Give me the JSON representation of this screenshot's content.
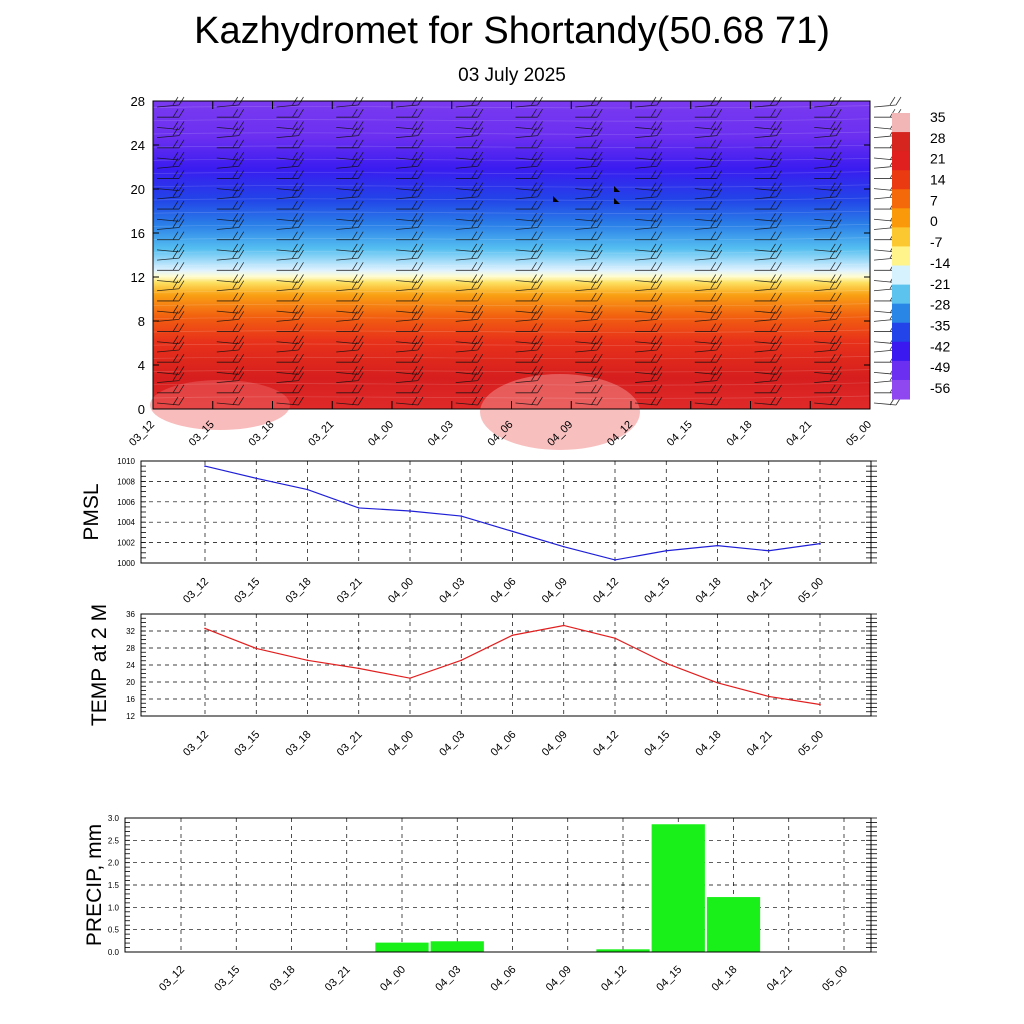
{
  "header": {
    "title": "Kazhydromet for Shortandy(50.68 71)",
    "subtitle": "03 July 2025"
  },
  "chart_data": [
    {
      "type": "heatmap",
      "name": "temperature-profile",
      "title": "",
      "xlabel": "",
      "ylabel": "",
      "x": [
        "03_12",
        "03_15",
        "03_18",
        "03_21",
        "04_00",
        "04_03",
        "04_06",
        "04_09",
        "04_12",
        "04_15",
        "04_18",
        "04_21",
        "05_00"
      ],
      "ylim": [
        0,
        28
      ],
      "yticks": [
        0,
        4,
        8,
        12,
        16,
        20,
        24,
        28
      ],
      "colorbar_labels": [
        "35",
        "28",
        "21",
        "14",
        "7",
        "0",
        "-7",
        "-14",
        "-21",
        "-28",
        "-35",
        "-42",
        "-49",
        "-56"
      ],
      "colorbar_colors": [
        "#f2b6b6",
        "#d6241f",
        "#e01f1f",
        "#ea3a12",
        "#f46a0a",
        "#fa9a0a",
        "#fcc832",
        "#fff48c",
        "#d6f2ff",
        "#5cc3ee",
        "#2a86e6",
        "#2244e8",
        "#3a18f0",
        "#6a2ff0",
        "#8f47f0"
      ],
      "wind_barbs": "shown"
    },
    {
      "type": "line",
      "name": "pmsl",
      "title": "",
      "ylabel": "PMSL",
      "x": [
        "03_12",
        "03_15",
        "03_18",
        "03_21",
        "04_00",
        "04_03",
        "04_06",
        "04_09",
        "04_12",
        "04_15",
        "04_18",
        "04_21",
        "05_00"
      ],
      "values": [
        1009.5,
        1008.3,
        1007.2,
        1005.4,
        1005.1,
        1004.6,
        1003.1,
        1001.6,
        1000.3,
        1001.2,
        1001.7,
        1001.2,
        1001.9
      ],
      "ylim": [
        1000,
        1010
      ],
      "yticks": [
        1000,
        1002,
        1004,
        1006,
        1008,
        1010
      ],
      "color": "#1f1fd6",
      "grid": true
    },
    {
      "type": "line",
      "name": "temp2m",
      "title": "",
      "ylabel": "TEMP at 2 M",
      "x": [
        "03_12",
        "03_15",
        "03_18",
        "03_21",
        "04_00",
        "04_03",
        "04_06",
        "04_09",
        "04_12",
        "04_15",
        "04_18",
        "04_21",
        "05_00"
      ],
      "values": [
        32.6,
        27.9,
        25.1,
        23.2,
        20.9,
        25.1,
        31.0,
        33.3,
        30.3,
        24.4,
        19.8,
        16.6,
        14.7
      ],
      "ylim": [
        12,
        36
      ],
      "yticks": [
        12,
        16,
        20,
        24,
        28,
        32,
        36
      ],
      "color": "#e01f1f",
      "grid": true
    },
    {
      "type": "bar",
      "name": "precip",
      "title": "",
      "ylabel": "PRECIP, mm",
      "categories": [
        "03_12",
        "03_15",
        "03_18",
        "03_21",
        "04_00",
        "04_03",
        "04_06",
        "04_09",
        "04_12",
        "04_15",
        "04_18",
        "04_21",
        "05_00"
      ],
      "values": [
        0,
        0,
        0,
        0,
        0.21,
        0.24,
        0,
        0,
        0.06,
        2.86,
        1.23,
        0,
        0
      ],
      "ylim": [
        0,
        3.0
      ],
      "yticks": [
        "0.0",
        "0.5",
        "1.0",
        "1.5",
        "2.0",
        "2.5",
        "3.0"
      ],
      "color": "#19f019",
      "grid": true
    }
  ]
}
